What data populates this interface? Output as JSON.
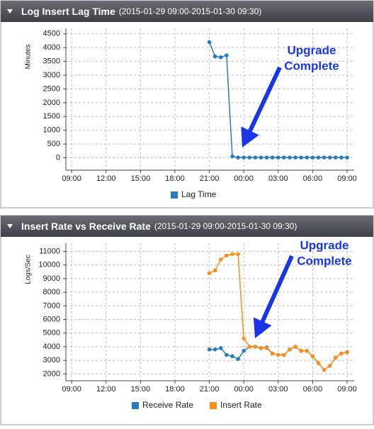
{
  "chart_data": [
    {
      "type": "line",
      "title": "Log Insert Lag Time",
      "subtitle": "(2015-01-29 09:00-2015-01-30 09:30)",
      "y_label": "Minutes",
      "annotation": [
        "Upgrade",
        "Complete"
      ],
      "x": [
        "2015-01-29T21:00",
        "2015-01-29T21:30",
        "2015-01-29T22:00",
        "2015-01-29T22:30",
        "2015-01-29T23:00",
        "2015-01-29T23:30",
        "2015-01-30T00:00",
        "2015-01-30T00:30",
        "2015-01-30T01:00",
        "2015-01-30T01:30",
        "2015-01-30T02:00",
        "2015-01-30T02:30",
        "2015-01-30T03:00",
        "2015-01-30T03:30",
        "2015-01-30T04:00",
        "2015-01-30T04:30",
        "2015-01-30T05:00",
        "2015-01-30T05:30",
        "2015-01-30T06:00",
        "2015-01-30T06:30",
        "2015-01-30T07:00",
        "2015-01-30T07:30",
        "2015-01-30T08:00",
        "2015-01-30T08:30",
        "2015-01-30T09:00"
      ],
      "series": [
        {
          "name": "Lag Time",
          "color": "#2b7bba",
          "values": [
            4200,
            3680,
            3650,
            3720,
            50,
            10,
            10,
            10,
            10,
            10,
            10,
            10,
            10,
            10,
            10,
            10,
            10,
            10,
            10,
            10,
            10,
            10,
            10,
            10,
            10
          ]
        }
      ],
      "xlim": [
        "2015-01-29T08:30",
        "2015-01-30T09:37"
      ],
      "xticks": [
        {
          "value": "2015-01-29T09:00",
          "label": "09:00"
        },
        {
          "value": "2015-01-29T12:00",
          "label": "12:00"
        },
        {
          "value": "2015-01-29T15:00",
          "label": "15:00"
        },
        {
          "value": "2015-01-29T18:00",
          "label": "18:00"
        },
        {
          "value": "2015-01-29T21:00",
          "label": "21:00"
        },
        {
          "value": "2015-01-30T00:00",
          "label": "00:00"
        },
        {
          "value": "2015-01-30T03:00",
          "label": "03:00"
        },
        {
          "value": "2015-01-30T06:00",
          "label": "06:00"
        },
        {
          "value": "2015-01-30T09:00",
          "label": "09:00"
        }
      ],
      "ylim": [
        -450,
        4700
      ],
      "yticks": [
        0,
        500,
        1000,
        1500,
        2000,
        2500,
        3000,
        3500,
        4000,
        4500
      ],
      "grid": true
    },
    {
      "type": "line",
      "title": "Insert Rate vs Receive Rate",
      "subtitle": "(2015-01-29 09:00-2015-01-30 09:30)",
      "y_label": "Logs/Sec",
      "annotation": [
        "Upgrade",
        "Complete"
      ],
      "x": [
        "2015-01-29T21:00",
        "2015-01-29T21:30",
        "2015-01-29T22:00",
        "2015-01-29T22:30",
        "2015-01-29T23:00",
        "2015-01-29T23:30",
        "2015-01-30T00:00",
        "2015-01-30T00:30",
        "2015-01-30T01:00",
        "2015-01-30T01:30",
        "2015-01-30T02:00",
        "2015-01-30T02:30",
        "2015-01-30T03:00",
        "2015-01-30T03:30",
        "2015-01-30T04:00",
        "2015-01-30T04:30",
        "2015-01-30T05:00",
        "2015-01-30T05:30",
        "2015-01-30T06:00",
        "2015-01-30T06:30",
        "2015-01-30T07:00",
        "2015-01-30T07:30",
        "2015-01-30T08:00",
        "2015-01-30T08:30",
        "2015-01-30T09:00"
      ],
      "series": [
        {
          "name": "Receive Rate",
          "color": "#2b7bba",
          "values": [
            3800,
            3800,
            3900,
            3400,
            3300,
            3100,
            3700,
            4000,
            4000,
            3900,
            3950,
            3500,
            3400,
            3400,
            3800,
            4000,
            3700,
            3700,
            3300,
            2800,
            2300,
            2600,
            3200,
            3500,
            3600
          ]
        },
        {
          "name": "Insert Rate",
          "color": "#f7901e",
          "values": [
            9400,
            9600,
            10400,
            10700,
            10800,
            10800,
            4600,
            4000,
            4000,
            3900,
            3900,
            3500,
            3400,
            3400,
            3800,
            4000,
            3700,
            3700,
            3300,
            2800,
            2300,
            2600,
            3200,
            3500,
            3600
          ]
        }
      ],
      "xlim": [
        "2015-01-29T08:30",
        "2015-01-30T09:37"
      ],
      "xticks": [
        {
          "value": "2015-01-29T09:00",
          "label": "09:00"
        },
        {
          "value": "2015-01-29T12:00",
          "label": "12:00"
        },
        {
          "value": "2015-01-29T15:00",
          "label": "15:00"
        },
        {
          "value": "2015-01-29T18:00",
          "label": "18:00"
        },
        {
          "value": "2015-01-29T21:00",
          "label": "21:00"
        },
        {
          "value": "2015-01-30T00:00",
          "label": "00:00"
        },
        {
          "value": "2015-01-30T03:00",
          "label": "03:00"
        },
        {
          "value": "2015-01-30T06:00",
          "label": "06:00"
        },
        {
          "value": "2015-01-30T09:00",
          "label": "09:00"
        }
      ],
      "ylim": [
        1500,
        11600
      ],
      "yticks": [
        2000,
        3000,
        4000,
        5000,
        6000,
        7000,
        8000,
        9000,
        10000,
        11000
      ],
      "grid": true
    }
  ]
}
